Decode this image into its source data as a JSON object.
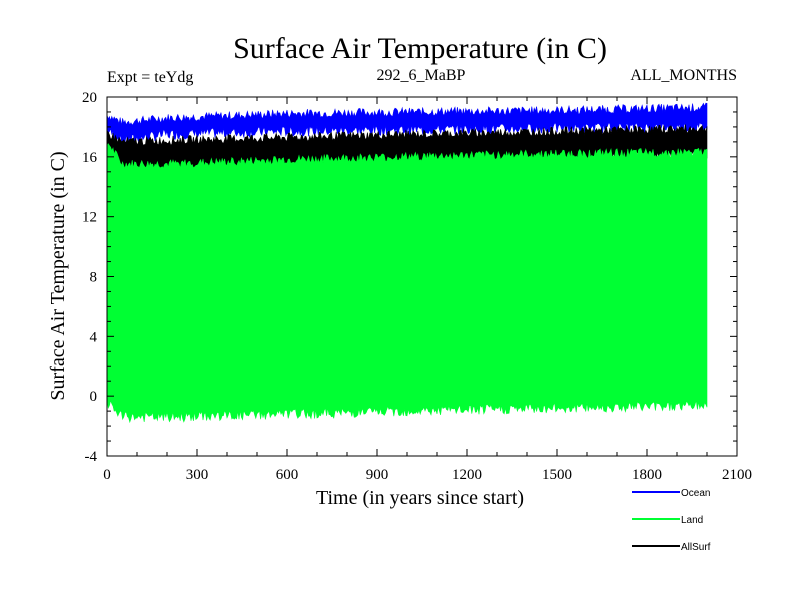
{
  "chart_data": {
    "type": "line",
    "title": "Surface Air Temperature (in C)",
    "subtitle_left": "Expt = teYdg",
    "subtitle_center": "292_6_MaBP",
    "subtitle_right": "ALL_MONTHS",
    "xlabel": "Time (in years since start)",
    "ylabel": "Surface Air Temperature (in C)",
    "xlim": [
      0,
      2100
    ],
    "ylim": [
      -4,
      20
    ],
    "x_ticks": [
      0,
      300,
      600,
      900,
      1200,
      1500,
      1800,
      2100
    ],
    "y_ticks": [
      -4,
      0,
      4,
      8,
      12,
      16,
      20
    ],
    "x_ticks_labels": [
      "0",
      "300",
      "600",
      "900",
      "1200",
      "1500",
      "1800",
      "2100"
    ],
    "y_ticks_labels": [
      "-4",
      "0",
      "4",
      "8",
      "12",
      "16",
      "20"
    ],
    "x_end": 2000,
    "series": [
      {
        "name": "Ocean",
        "color": "#0000ff",
        "band_upper": [
          [
            0,
            18.8
          ],
          [
            50,
            18.3
          ],
          [
            200,
            18.6
          ],
          [
            600,
            18.9
          ],
          [
            1000,
            19.0
          ],
          [
            1500,
            19.1
          ],
          [
            2000,
            19.3
          ]
        ],
        "band_lower": [
          [
            0,
            17.8
          ],
          [
            50,
            17.1
          ],
          [
            200,
            17.5
          ],
          [
            600,
            17.7
          ],
          [
            1000,
            17.8
          ],
          [
            1500,
            17.9
          ],
          [
            2000,
            18.0
          ]
        ]
      },
      {
        "name": "AllSurf",
        "color": "#000000",
        "band_upper": [
          [
            0,
            17.6
          ],
          [
            50,
            17.0
          ],
          [
            200,
            17.1
          ],
          [
            600,
            17.3
          ],
          [
            1000,
            17.5
          ],
          [
            1500,
            17.7
          ],
          [
            2000,
            17.9
          ]
        ],
        "band_lower": [
          [
            0,
            15.6
          ],
          [
            50,
            14.9
          ],
          [
            200,
            15.0
          ],
          [
            600,
            15.3
          ],
          [
            1000,
            15.5
          ],
          [
            1500,
            15.8
          ],
          [
            2000,
            16.1
          ]
        ]
      },
      {
        "name": "Land",
        "color": "#00ff33",
        "band_upper": [
          [
            0,
            17.0
          ],
          [
            50,
            15.5
          ],
          [
            200,
            15.5
          ],
          [
            600,
            15.8
          ],
          [
            1000,
            16.0
          ],
          [
            1500,
            16.2
          ],
          [
            2000,
            16.3
          ]
        ],
        "band_lower": [
          [
            0,
            -0.4
          ],
          [
            50,
            -1.4
          ],
          [
            200,
            -1.4
          ],
          [
            600,
            -1.2
          ],
          [
            1000,
            -1.0
          ],
          [
            1500,
            -0.8
          ],
          [
            2000,
            -0.6
          ]
        ]
      }
    ],
    "legend": {
      "placement": "bottom-right",
      "items": [
        {
          "label": "Ocean",
          "color": "#0000ff"
        },
        {
          "label": "Land",
          "color": "#00ff33"
        },
        {
          "label": "AllSurf",
          "color": "#000000"
        }
      ]
    }
  }
}
